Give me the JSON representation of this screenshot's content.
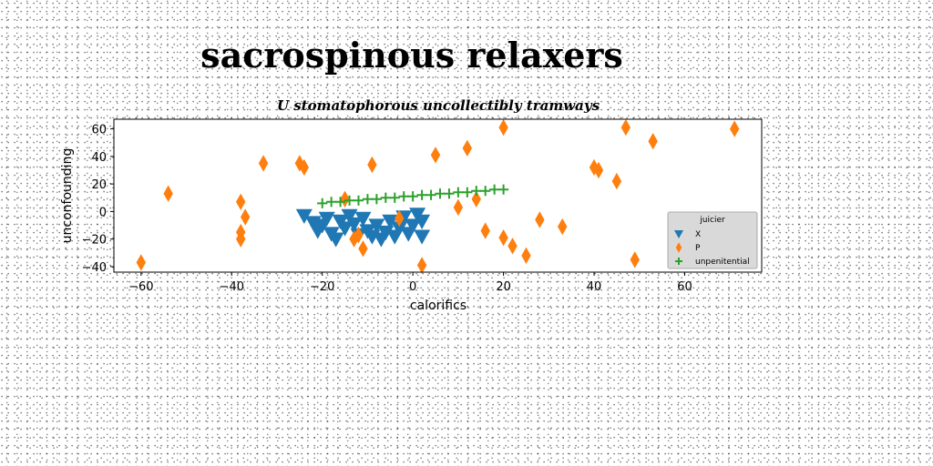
{
  "chart_data": {
    "type": "scatter",
    "title": "sacrospinous relaxers",
    "subtitle": "U stomatophorous uncollectibly tramways",
    "xlabel": "calorifics",
    "ylabel": "unconfounding",
    "xlim": [
      -66,
      77
    ],
    "ylim": [
      -44,
      67
    ],
    "xticks": [
      -60,
      -40,
      -20,
      0,
      20,
      40,
      60
    ],
    "yticks": [
      -40,
      -20,
      0,
      20,
      40,
      60
    ],
    "grid": false,
    "legend": {
      "title": "juicier",
      "position": "lower-right"
    },
    "series": [
      {
        "name": "X",
        "marker": "triangle-down",
        "color": "#1f77b4",
        "points": [
          [
            -24,
            -3
          ],
          [
            -22,
            -8
          ],
          [
            -21,
            -14
          ],
          [
            -20,
            -10
          ],
          [
            -19,
            -5
          ],
          [
            -18,
            -16
          ],
          [
            -17,
            -20
          ],
          [
            -16,
            -7
          ],
          [
            -15,
            -12
          ],
          [
            -14,
            -3
          ],
          [
            -13,
            -9
          ],
          [
            -12,
            -17
          ],
          [
            -11,
            -5
          ],
          [
            -10,
            -14
          ],
          [
            -9,
            -18
          ],
          [
            -8,
            -10
          ],
          [
            -7,
            -20
          ],
          [
            -6,
            -15
          ],
          [
            -5,
            -7
          ],
          [
            -4,
            -18
          ],
          [
            -3,
            -12
          ],
          [
            -2,
            -4
          ],
          [
            -1,
            -16
          ],
          [
            0,
            -10
          ],
          [
            1,
            -2
          ],
          [
            2,
            -18
          ],
          [
            2,
            -7
          ]
        ]
      },
      {
        "name": "P",
        "marker": "thin-diamond",
        "color": "#ff7f0e",
        "points": [
          [
            -60,
            -37
          ],
          [
            -54,
            13
          ],
          [
            -38,
            7
          ],
          [
            -37,
            -4
          ],
          [
            -38,
            -15
          ],
          [
            -38,
            -20
          ],
          [
            -33,
            35
          ],
          [
            -25,
            35
          ],
          [
            -24,
            32
          ],
          [
            -15,
            9
          ],
          [
            -13,
            -20
          ],
          [
            -12,
            -17
          ],
          [
            -11,
            -27
          ],
          [
            -9,
            34
          ],
          [
            -3,
            -5
          ],
          [
            2,
            -39
          ],
          [
            5,
            41
          ],
          [
            10,
            3
          ],
          [
            12,
            46
          ],
          [
            14,
            9
          ],
          [
            16,
            -14
          ],
          [
            20,
            -19
          ],
          [
            20,
            61
          ],
          [
            22,
            -25
          ],
          [
            25,
            -32
          ],
          [
            28,
            -6
          ],
          [
            33,
            -11
          ],
          [
            40,
            32
          ],
          [
            41,
            30
          ],
          [
            45,
            22
          ],
          [
            47,
            61
          ],
          [
            49,
            -35
          ],
          [
            53,
            51
          ],
          [
            71,
            60
          ]
        ]
      },
      {
        "name": "unpenitential",
        "marker": "plus",
        "color": "#2ca02c",
        "points": [
          [
            -20,
            6
          ],
          [
            -18,
            7
          ],
          [
            -16,
            7
          ],
          [
            -14,
            8
          ],
          [
            -12,
            8
          ],
          [
            -10,
            9
          ],
          [
            -8,
            9
          ],
          [
            -6,
            10
          ],
          [
            -4,
            10
          ],
          [
            -2,
            11
          ],
          [
            0,
            11
          ],
          [
            2,
            12
          ],
          [
            4,
            12
          ],
          [
            6,
            13
          ],
          [
            8,
            13
          ],
          [
            10,
            14
          ],
          [
            12,
            14
          ],
          [
            14,
            15
          ],
          [
            16,
            15
          ],
          [
            18,
            16
          ],
          [
            20,
            16
          ]
        ]
      }
    ]
  }
}
